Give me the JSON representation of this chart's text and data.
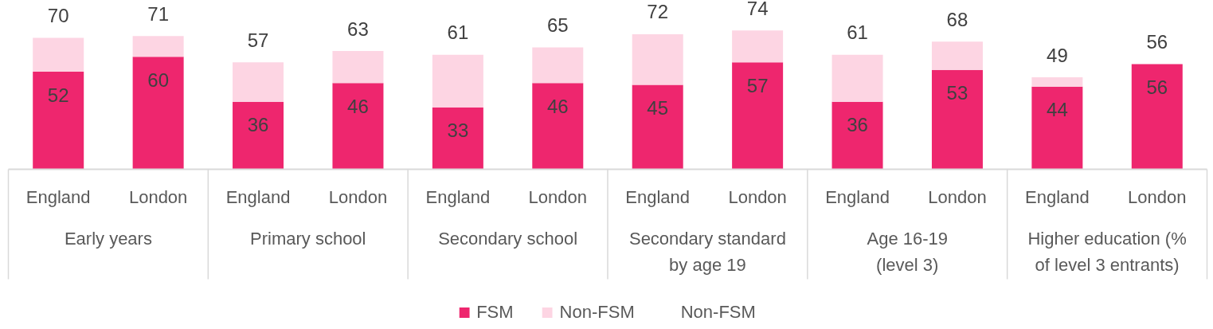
{
  "chart_data": {
    "type": "bar",
    "stacked": true,
    "legend": "bottom",
    "tick_labels": "x",
    "ylim": [
      0,
      90
    ],
    "categories": [
      "England",
      "London",
      "England",
      "London",
      "England",
      "London",
      "England",
      "London",
      "England",
      "London",
      "England",
      "London"
    ],
    "series": [
      {
        "name": "FSM",
        "color": "#ee266e",
        "values": [
          52,
          60,
          36,
          46,
          33,
          46,
          45,
          57,
          36,
          53,
          44,
          56
        ],
        "value_labels": [
          "52",
          "60",
          "36",
          "46",
          "33",
          "46",
          "45",
          "57",
          "36",
          "53",
          "44",
          "56"
        ]
      },
      {
        "name": "Non-FSM",
        "color": "#fdd5e3",
        "values": [
          18,
          11,
          21,
          17,
          28,
          19,
          27,
          17,
          25,
          15,
          5,
          0
        ]
      },
      {
        "name": "Non-FSM",
        "values": [
          null,
          null,
          null,
          null,
          null,
          null,
          null,
          null,
          null,
          null,
          null,
          null
        ]
      }
    ],
    "totals": [
      "70",
      "71",
      "57",
      "63",
      "61",
      "65",
      "72",
      "74",
      "61",
      "68",
      "49",
      "56"
    ],
    "annotations": [
      "Early years",
      "Primary school",
      "Secondary school",
      "Secondary standard\nby age 19",
      "Age 16-19\n(level 3)",
      "Higher education (%\nof level 3 entrants)"
    ]
  }
}
